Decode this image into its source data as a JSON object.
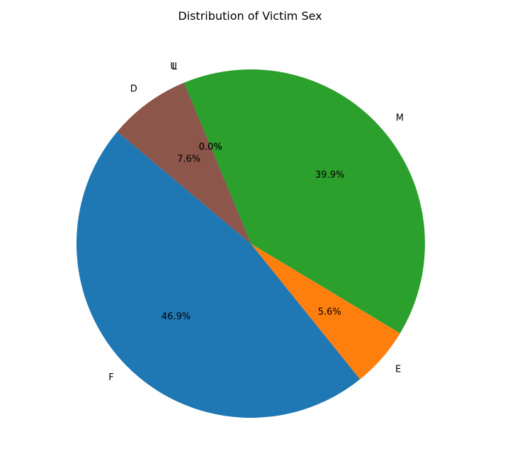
{
  "chart_data": {
    "type": "pie",
    "title": "Distribution of Victim Sex",
    "slices": [
      {
        "label": "F",
        "value": 46.9,
        "pct_label": "46.9%",
        "color": "#1f77b4"
      },
      {
        "label": "E",
        "value": 5.6,
        "pct_label": "5.6%",
        "color": "#ff7f0e"
      },
      {
        "label": "M",
        "value": 39.9,
        "pct_label": "39.9%",
        "color": "#2ca02c"
      },
      {
        "label": "L",
        "value": 0.0,
        "pct_label": "0.0%",
        "color": "#d62728"
      },
      {
        "label": "U",
        "value": 0.0,
        "pct_label": "0.0%",
        "color": "#9467bd"
      },
      {
        "label": "D",
        "value": 7.6,
        "pct_label": "7.6%",
        "color": "#8c564b"
      }
    ],
    "start_angle_deg": 140,
    "direction": "counterclockwise",
    "legend": "none"
  }
}
